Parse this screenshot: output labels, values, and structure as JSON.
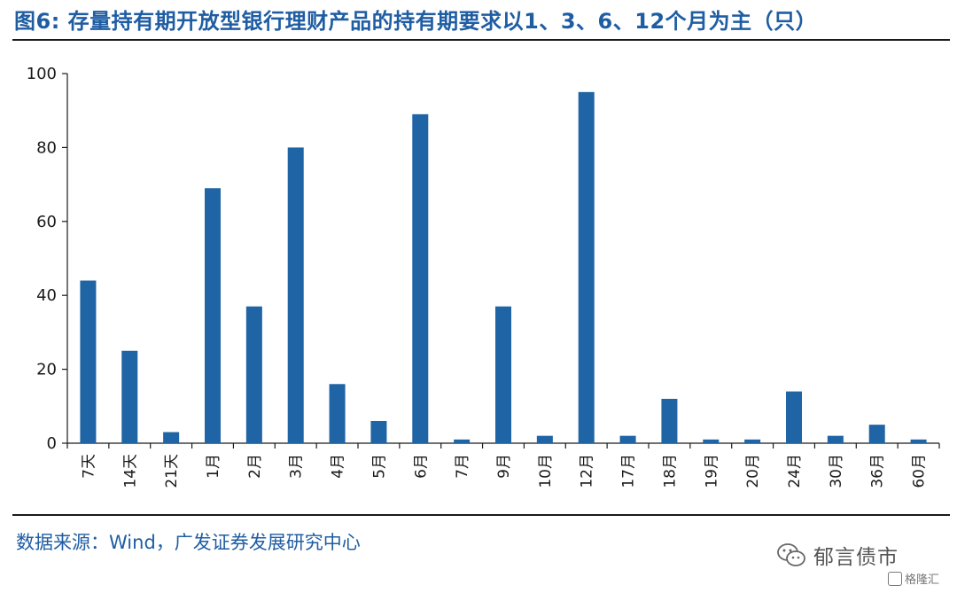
{
  "header": {
    "title": "图6:  存量持有期开放型银行理财产品的持有期要求以1、3、6、12个月为主（只）"
  },
  "footer": {
    "source": "数据来源：Wind，广发证券发展研究中心",
    "watermark": "郁言债市",
    "watermark_badge": "格隆汇"
  },
  "colors": {
    "bar": "#1f64a4",
    "axis": "#1a1a1a",
    "title": "#1f5da3"
  },
  "chart_data": {
    "type": "bar",
    "title": "",
    "xlabel": "",
    "ylabel": "",
    "ylim": [
      0,
      100
    ],
    "yticks": [
      0,
      20,
      40,
      60,
      80,
      100
    ],
    "grid": false,
    "legend": "none",
    "categories": [
      "7天",
      "14天",
      "21天",
      "1月",
      "2月",
      "3月",
      "4月",
      "5月",
      "6月",
      "7月",
      "9月",
      "10月",
      "12月",
      "17月",
      "18月",
      "19月",
      "20月",
      "24月",
      "30月",
      "36月",
      "60月"
    ],
    "values": [
      44,
      25,
      3,
      69,
      37,
      80,
      16,
      6,
      89,
      1,
      37,
      2,
      95,
      2,
      12,
      1,
      1,
      14,
      2,
      5,
      1
    ]
  }
}
